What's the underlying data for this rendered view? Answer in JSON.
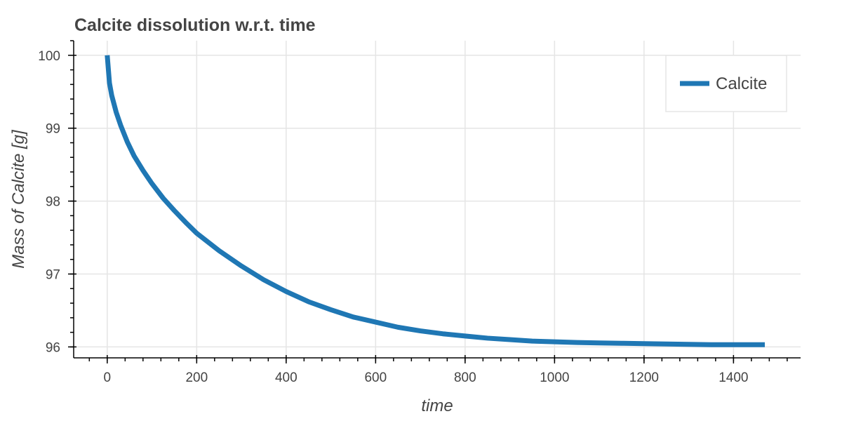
{
  "chart_data": {
    "type": "line",
    "title": "Calcite dissolution w.r.t. time",
    "xlabel": "time",
    "ylabel": "Mass of Calcite [g]",
    "xlim": [
      -75,
      1550
    ],
    "ylim": [
      95.85,
      100.2
    ],
    "x_ticks": [
      0,
      200,
      400,
      600,
      800,
      1000,
      1200,
      1400
    ],
    "y_ticks": [
      96,
      97,
      98,
      99,
      100
    ],
    "x_minor_step": 40,
    "y_minor_step": 0.2,
    "grid": true,
    "legend_position": "top-right",
    "series": [
      {
        "name": "Calcite",
        "color": "#1f77b4",
        "x": [
          0,
          5,
          10,
          20,
          30,
          45,
          60,
          80,
          100,
          125,
          150,
          175,
          200,
          250,
          300,
          350,
          400,
          450,
          500,
          550,
          600,
          650,
          700,
          750,
          800,
          850,
          900,
          950,
          1000,
          1050,
          1100,
          1150,
          1200,
          1250,
          1300,
          1350,
          1400,
          1470
        ],
        "y": [
          100.0,
          99.62,
          99.45,
          99.22,
          99.04,
          98.81,
          98.62,
          98.42,
          98.24,
          98.04,
          97.87,
          97.71,
          97.56,
          97.32,
          97.11,
          96.92,
          96.76,
          96.62,
          96.51,
          96.41,
          96.34,
          96.27,
          96.22,
          96.18,
          96.15,
          96.12,
          96.1,
          96.08,
          96.07,
          96.06,
          96.055,
          96.05,
          96.045,
          96.04,
          96.035,
          96.03,
          96.03,
          96.03
        ]
      }
    ]
  }
}
